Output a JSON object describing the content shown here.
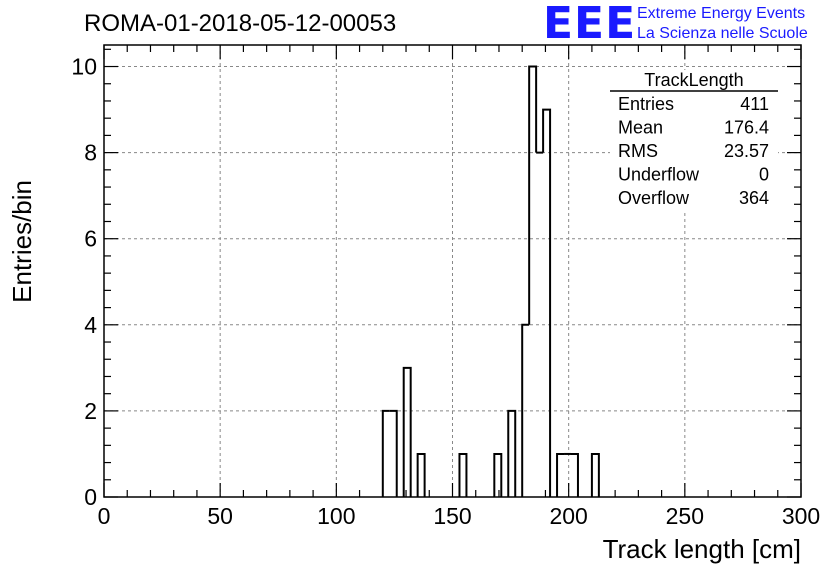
{
  "header": {
    "title": "ROMA-01-2018-05-12-00053"
  },
  "logo": {
    "mark": "EEE",
    "line1": "Extreme Energy Events",
    "line2": "La Scienza nelle Scuole",
    "color": "#1a1aff"
  },
  "chart_data": {
    "type": "histogram",
    "xlabel": "Track length [cm]",
    "ylabel": "Entries/bin",
    "xlim": [
      0,
      300
    ],
    "ylim": [
      0,
      10.5
    ],
    "xticks": [
      0,
      50,
      100,
      150,
      200,
      250,
      300
    ],
    "yticks": [
      0,
      2,
      4,
      6,
      8,
      10
    ],
    "grid": true,
    "bin_width": 3,
    "bins": [
      {
        "x0": 120,
        "value": 2
      },
      {
        "x0": 123,
        "value": 2
      },
      {
        "x0": 129,
        "value": 3
      },
      {
        "x0": 135,
        "value": 1
      },
      {
        "x0": 153,
        "value": 1
      },
      {
        "x0": 168,
        "value": 1
      },
      {
        "x0": 174,
        "value": 2
      },
      {
        "x0": 180,
        "value": 4
      },
      {
        "x0": 183,
        "value": 10
      },
      {
        "x0": 186,
        "value": 8
      },
      {
        "x0": 189,
        "value": 9
      },
      {
        "x0": 195,
        "value": 1
      },
      {
        "x0": 198,
        "value": 1
      },
      {
        "x0": 201,
        "value": 1
      },
      {
        "x0": 210,
        "value": 1
      }
    ],
    "stats": {
      "title": "TrackLength",
      "placement": "top-right",
      "rows": [
        {
          "label": "Entries",
          "value": "411"
        },
        {
          "label": "Mean",
          "value": "176.4"
        },
        {
          "label": "RMS",
          "value": "23.57"
        },
        {
          "label": "Underflow",
          "value": "0"
        },
        {
          "label": "Overflow",
          "value": "364"
        }
      ]
    }
  }
}
